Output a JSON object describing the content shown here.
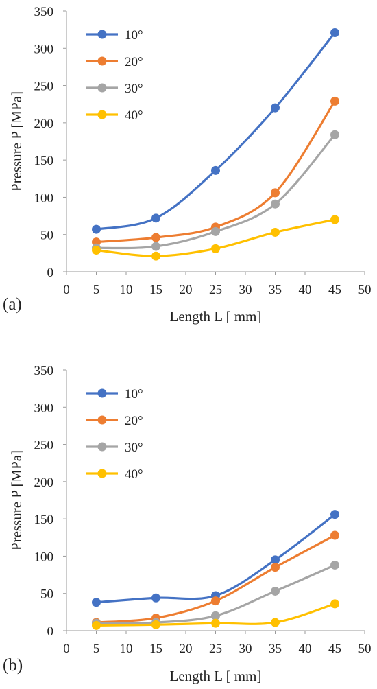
{
  "chart_data": [
    {
      "type": "line",
      "panel_label": "(a)",
      "xlabel": "Length L [ mm]",
      "ylabel": "Pressure P [MPa]",
      "xlim": [
        0,
        50
      ],
      "ylim": [
        0,
        350
      ],
      "xticks": [
        "0",
        "5",
        "10",
        "15",
        "20",
        "25",
        "30",
        "35",
        "40",
        "45",
        "50"
      ],
      "yticks": [
        "0",
        "50",
        "100",
        "150",
        "200",
        "250",
        "300",
        "350"
      ],
      "grid": false,
      "legend_position": "top-left",
      "line_style": "smoothed with circle markers",
      "x": [
        5,
        15,
        25,
        35,
        45
      ],
      "series": [
        {
          "name": "10°",
          "color": "#4472C4",
          "values": [
            57,
            72,
            136,
            220,
            321
          ]
        },
        {
          "name": "20°",
          "color": "#ED7D31",
          "values": [
            40,
            46,
            60,
            106,
            229
          ]
        },
        {
          "name": "30°",
          "color": "#A5A5A5",
          "values": [
            32,
            34,
            54,
            91,
            184
          ]
        },
        {
          "name": "40°",
          "color": "#FFC000",
          "values": [
            29,
            21,
            31,
            53,
            70
          ]
        }
      ]
    },
    {
      "type": "line",
      "panel_label": "(b)",
      "xlabel": "Length L [ mm]",
      "ylabel": "Pressure P [MPa]",
      "xlim": [
        0,
        50
      ],
      "ylim": [
        0,
        350
      ],
      "xticks": [
        "0",
        "5",
        "10",
        "15",
        "20",
        "25",
        "30",
        "35",
        "40",
        "45",
        "50"
      ],
      "yticks": [
        "0",
        "50",
        "100",
        "150",
        "200",
        "250",
        "300",
        "350"
      ],
      "grid": false,
      "legend_position": "top-left",
      "line_style": "smoothed with circle markers",
      "x": [
        5,
        15,
        25,
        35,
        45
      ],
      "series": [
        {
          "name": "10°",
          "color": "#4472C4",
          "values": [
            38,
            44,
            47,
            95,
            156
          ]
        },
        {
          "name": "20°",
          "color": "#ED7D31",
          "values": [
            11,
            17,
            40,
            85,
            128
          ]
        },
        {
          "name": "30°",
          "color": "#A5A5A5",
          "values": [
            10,
            11,
            20,
            53,
            88
          ]
        },
        {
          "name": "40°",
          "color": "#FFC000",
          "values": [
            7,
            8,
            10,
            11,
            36
          ]
        }
      ]
    }
  ]
}
